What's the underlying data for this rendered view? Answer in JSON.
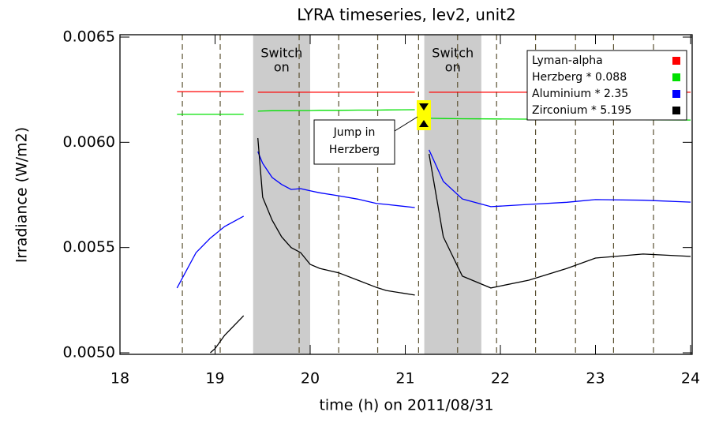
{
  "chart_data": {
    "type": "line",
    "title": "LYRA timeseries, lev2, unit2",
    "xlabel": "time (h) on 2011/08/31",
    "ylabel": "Irradiance (W/m2)",
    "x": [
      18.6,
      18.8,
      18.95,
      19.0,
      19.1,
      19.3,
      19.38,
      19.45,
      19.5,
      19.6,
      19.7,
      19.8,
      19.9,
      20.0,
      20.1,
      20.3,
      20.5,
      20.7,
      20.8,
      21.1,
      21.18,
      21.25,
      21.4,
      21.6,
      21.9,
      22.3,
      22.7,
      23.0,
      23.5,
      24.0
    ],
    "series": [
      {
        "name": "Lyman-alpha",
        "color": "#ff0000",
        "values": [
          0.006241,
          0.006241,
          0.006241,
          0.006241,
          0.006241,
          0.006241,
          null,
          0.006238,
          0.006238,
          0.006238,
          0.006238,
          0.006238,
          0.006238,
          0.006238,
          0.006238,
          0.006238,
          0.006238,
          0.006238,
          0.006238,
          0.006238,
          null,
          0.006238,
          0.006238,
          0.006238,
          0.006238,
          0.006238,
          0.006238,
          0.006238,
          0.006238,
          0.006238
        ]
      },
      {
        "name": "Herzberg * 0.088",
        "color": "#00e000",
        "values": [
          0.006133,
          0.006133,
          0.006133,
          0.006133,
          0.006133,
          0.006133,
          null,
          0.006148,
          0.006149,
          0.00615,
          0.00615,
          0.00615,
          0.006151,
          0.006151,
          0.006152,
          0.006152,
          0.006153,
          0.006153,
          0.006154,
          0.006155,
          null,
          0.006114,
          0.006113,
          0.006112,
          0.006111,
          0.00611,
          0.006109,
          0.006108,
          0.006107,
          0.006106
        ]
      },
      {
        "name": "Aluminium * 2.35",
        "color": "#0000ff",
        "values": [
          0.005308,
          0.005476,
          0.005545,
          0.005563,
          0.0056,
          0.005649,
          null,
          0.005956,
          0.0059,
          0.005833,
          0.0058,
          0.005776,
          0.00578,
          0.00577,
          0.00576,
          0.005746,
          0.00573,
          0.005709,
          0.005705,
          0.00569,
          null,
          0.005964,
          0.005814,
          0.005731,
          0.005694,
          0.005705,
          0.005715,
          0.005728,
          0.005725,
          0.005716
        ]
      },
      {
        "name": "Zirconium * 5.195",
        "color": "#000000",
        "values": [
          null,
          null,
          0.005,
          0.00502,
          0.005083,
          0.005176,
          null,
          0.00602,
          0.005739,
          0.00563,
          0.005551,
          0.0055,
          0.005476,
          0.00542,
          0.005401,
          0.00538,
          0.005345,
          0.00531,
          0.005296,
          0.005274,
          null,
          0.005945,
          0.005551,
          0.005364,
          0.005308,
          0.005345,
          0.005401,
          0.00545,
          0.005469,
          0.005458
        ]
      }
    ],
    "xlim": [
      18,
      24
    ],
    "xticks": [
      18,
      19,
      20,
      21,
      22,
      23,
      24
    ],
    "ylim": [
      0.005,
      0.0065
    ],
    "yticks": [
      {
        "value": 0.005,
        "label": "0.0050"
      },
      {
        "value": 0.0055,
        "label": "0.0055"
      },
      {
        "value": 0.006,
        "label": "0.0060"
      },
      {
        "value": 0.0065,
        "label": "0.0065"
      }
    ],
    "dashed_lines": [
      18.656,
      19.054,
      19.884,
      20.3,
      20.71,
      21.14,
      21.55,
      21.96,
      22.37,
      22.79,
      23.19,
      23.61
    ],
    "shaded_regions": [
      {
        "x": [
          19.4,
          20.0
        ],
        "label": [
          "Switch",
          "on"
        ]
      },
      {
        "x": [
          21.2,
          21.8
        ],
        "label": [
          "Switch",
          "on"
        ]
      }
    ],
    "annotation": [
      "Jump in",
      "Herzberg"
    ],
    "legend": "upper right"
  }
}
